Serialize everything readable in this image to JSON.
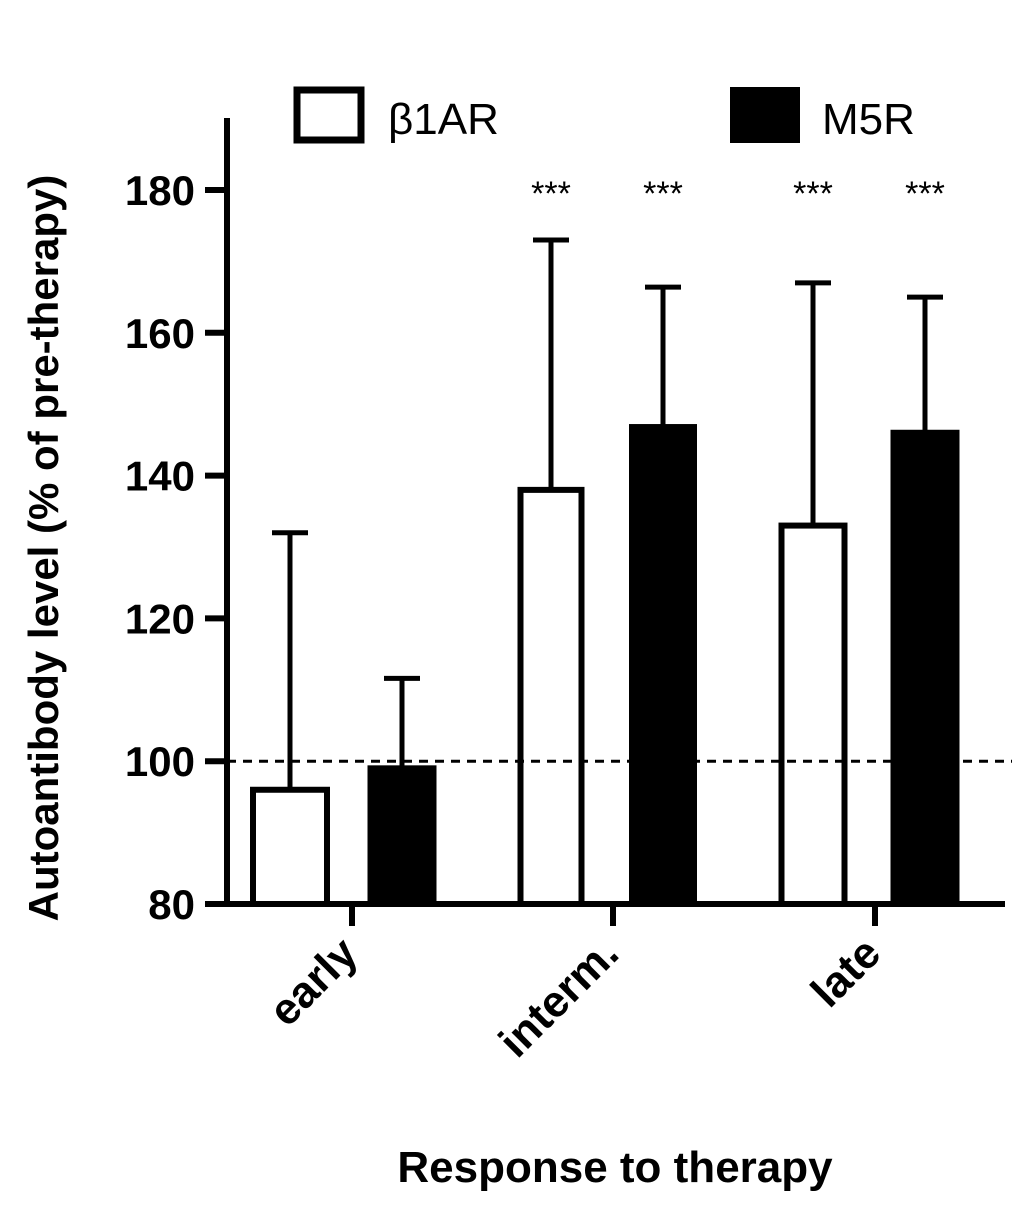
{
  "chart_data": {
    "type": "bar",
    "title": "",
    "xlabel": "Response to therapy",
    "ylabel": "Autoantibody level (% of pre-therapy)",
    "ylim": [
      80,
      190
    ],
    "yticks": [
      80,
      100,
      120,
      140,
      160,
      180
    ],
    "categories": [
      "early",
      "interm.",
      "late"
    ],
    "reference_line": {
      "y": 100,
      "style": "dashed"
    },
    "legend_position": "top",
    "series": [
      {
        "name": "β1AR",
        "color": "#ffffff",
        "values": [
          96,
          138,
          133
        ],
        "error_upper": [
          132,
          173,
          167
        ],
        "annotations": [
          "",
          "***",
          "***"
        ]
      },
      {
        "name": "M5R",
        "color": "#000000",
        "values": [
          99,
          146.8,
          146
        ],
        "error_upper": [
          111.6,
          166.4,
          165
        ],
        "annotations": [
          "",
          "***",
          "***"
        ]
      }
    ],
    "grid": false
  }
}
